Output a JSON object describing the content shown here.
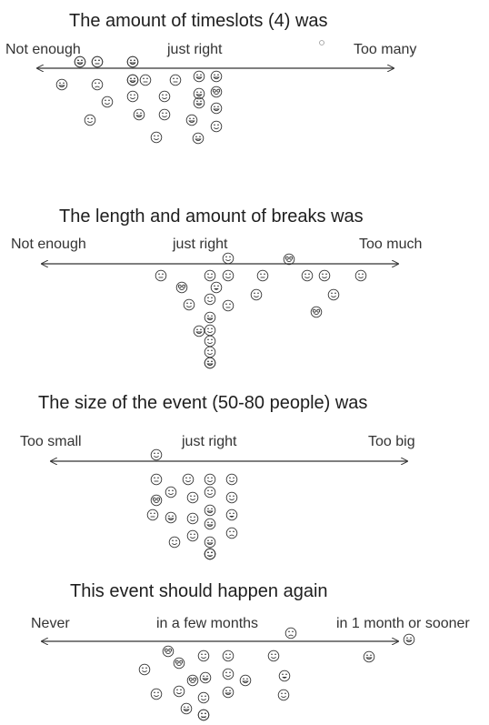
{
  "sections": [
    {
      "title": "The amount of timeslots (4) was",
      "labels": {
        "left": "Not enough",
        "middle": "just right",
        "right": "Too many"
      },
      "faces": [
        "wink",
        "neutral",
        "smile",
        "smile",
        "neutral",
        "neutral",
        "happy",
        "happy",
        "happy",
        "sad",
        "happy",
        "glasses",
        "smile",
        "smile",
        "smile",
        "happy",
        "happy",
        "happy",
        "smile",
        "smile",
        "happy",
        "smile",
        "smile",
        "happy",
        "happy",
        "neutral",
        "happy",
        "happy"
      ]
    },
    {
      "title": "The length and amount of breaks was",
      "labels": {
        "left": "Not enough",
        "middle": "just right",
        "right": "Too much"
      },
      "faces": [
        "smile",
        "glasses",
        "neutral",
        "smile",
        "smile",
        "neutral",
        "smile",
        "smile",
        "smile",
        "glasses",
        "grin",
        "smile",
        "smile",
        "smile",
        "neutral",
        "glasses",
        "smile",
        "happy",
        "happy",
        "smile",
        "smile",
        "smile",
        "smile",
        "happy"
      ]
    },
    {
      "title": "The size of the event (50-80 people) was",
      "labels": {
        "left": "Too small",
        "middle": "just right",
        "right": "Too big"
      },
      "faces": [
        "smile",
        "neutral",
        "smile",
        "smile",
        "smile",
        "smile",
        "smile",
        "smile",
        "smile",
        "glasses",
        "happy",
        "neutral",
        "happy",
        "grin",
        "smile",
        "happy",
        "smile",
        "smile",
        "happy",
        "sad",
        "smile",
        "smile",
        "neutral"
      ]
    },
    {
      "title": "This event should happen again",
      "labels": {
        "left": "Never",
        "middle": "in a few months",
        "right": "in 1 month or sooner"
      },
      "faces": [
        "sad",
        "happy",
        "glasses",
        "smile",
        "glasses",
        "smile",
        "smile",
        "happy",
        "smile",
        "glasses",
        "happy",
        "smile",
        "happy",
        "grin",
        "smile",
        "smile",
        "smile",
        "happy",
        "smile",
        "happy",
        "smile",
        "sad"
      ]
    }
  ]
}
